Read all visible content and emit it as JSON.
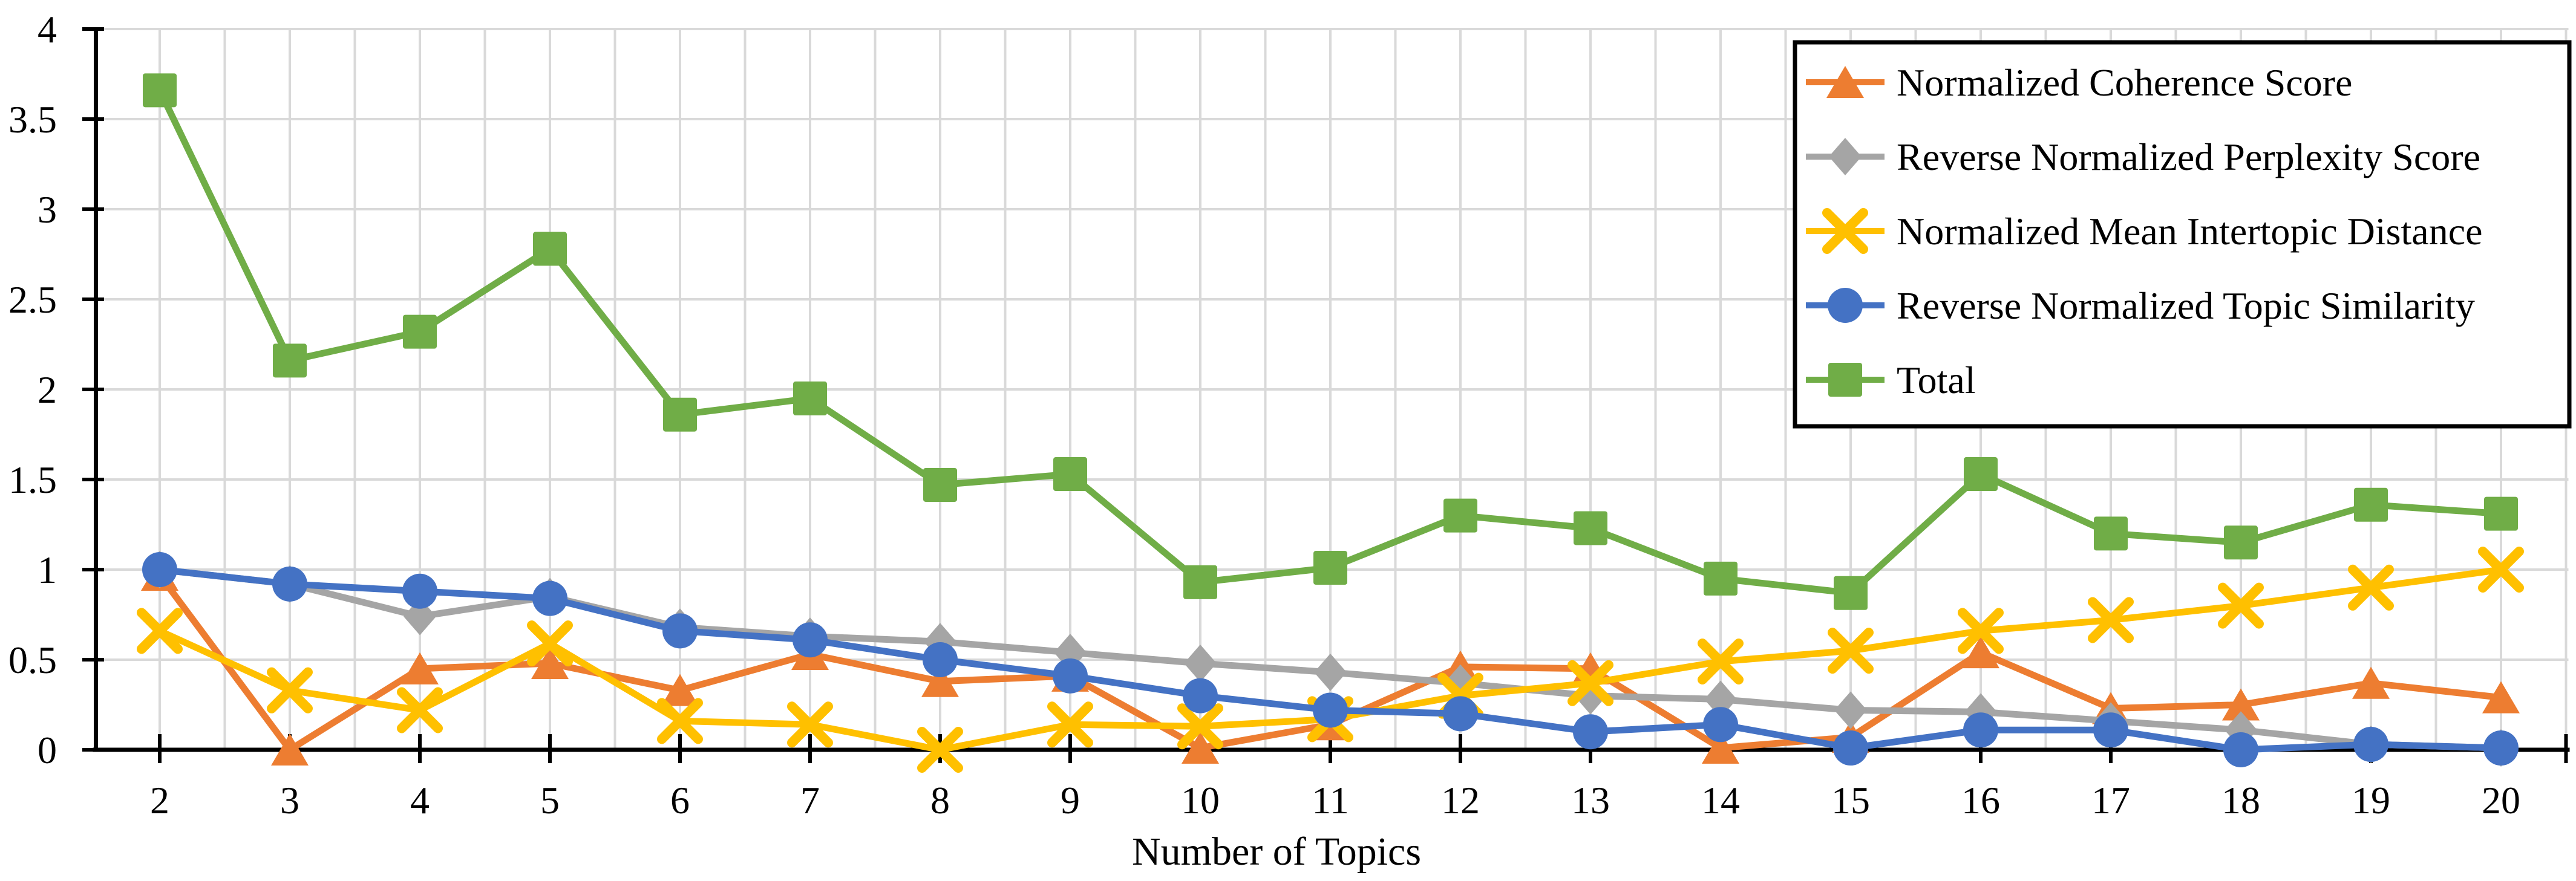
{
  "chart_data": {
    "type": "line",
    "title": "",
    "xlabel": "Number of Topics",
    "ylabel": "",
    "x": [
      2,
      3,
      4,
      5,
      6,
      7,
      8,
      9,
      10,
      11,
      12,
      13,
      14,
      15,
      16,
      17,
      18,
      19,
      20
    ],
    "xlim": [
      2,
      20
    ],
    "ylim": [
      0,
      4
    ],
    "ytick_step": 0.5,
    "ytick_labels": [
      "0",
      "0.5",
      "1",
      "1.5",
      "2",
      "2.5",
      "3",
      "3.5",
      "4"
    ],
    "grid": true,
    "grid_x_substep": 0.5,
    "legend_position": "top-right",
    "series": [
      {
        "name": "Normalized Coherence Score",
        "color": "#ED7D31",
        "marker": "triangle",
        "values": [
          0.97,
          0.0,
          0.45,
          0.48,
          0.33,
          0.53,
          0.38,
          0.41,
          0.01,
          0.14,
          0.46,
          0.45,
          0.01,
          0.07,
          0.54,
          0.23,
          0.25,
          0.37,
          0.29
        ]
      },
      {
        "name": "Reverse Normalized Perplexity Score",
        "color": "#A5A5A5",
        "marker": "diamond",
        "values": [
          1.0,
          0.92,
          0.74,
          0.85,
          0.68,
          0.63,
          0.6,
          0.54,
          0.48,
          0.43,
          0.37,
          0.3,
          0.28,
          0.22,
          0.21,
          0.16,
          0.11,
          0.03,
          0.01
        ]
      },
      {
        "name": "Normalized Mean Intertopic Distance",
        "color": "#FFC000",
        "marker": "x",
        "values": [
          0.66,
          0.33,
          0.22,
          0.59,
          0.16,
          0.14,
          0.0,
          0.14,
          0.13,
          0.17,
          0.3,
          0.37,
          0.49,
          0.55,
          0.66,
          0.72,
          0.8,
          0.9,
          1.0
        ]
      },
      {
        "name": "Reverse Normalized Topic Similarity",
        "color": "#4472C4",
        "marker": "circle",
        "values": [
          1.0,
          0.92,
          0.88,
          0.84,
          0.66,
          0.61,
          0.5,
          0.41,
          0.3,
          0.22,
          0.2,
          0.1,
          0.14,
          0.01,
          0.11,
          0.11,
          0.0,
          0.03,
          0.01
        ]
      },
      {
        "name": "Total",
        "color": "#70AD47",
        "marker": "square",
        "values": [
          3.66,
          2.16,
          2.32,
          2.78,
          1.86,
          1.95,
          1.47,
          1.53,
          0.93,
          1.01,
          1.3,
          1.23,
          0.95,
          0.87,
          1.53,
          1.2,
          1.15,
          1.36,
          1.31
        ]
      }
    ]
  },
  "colors": {
    "background": "#FFFFFF",
    "gridline": "#D9D9D9",
    "axis": "#000000",
    "text": "#000000",
    "legend_border": "#000000",
    "legend_fill": "#FFFFFF"
  }
}
